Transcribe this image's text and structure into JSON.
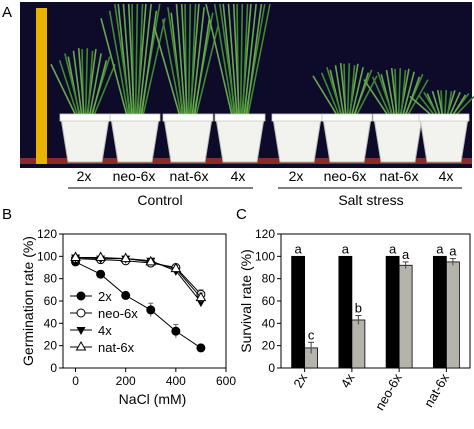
{
  "panel_a": {
    "label": "A",
    "genotypes_control": [
      "2x",
      "neo-6x",
      "nat-6x",
      "4x"
    ],
    "genotypes_salt": [
      "2x",
      "neo-6x",
      "nat-6x",
      "4x"
    ],
    "group_control": "Control",
    "group_salt": "Salt stress",
    "colors": {
      "background": "#0d0a2a",
      "pot": "#f2f2ee",
      "plant": "#3f8a2e",
      "ruler": "#e8b400",
      "bench": "#8a2a2a"
    }
  },
  "chart_data": [
    {
      "panel_label": "B",
      "type": "line",
      "xlabel": "NaCl (mM)",
      "ylabel": "Germination rate (%)",
      "xlim": [
        -50,
        600
      ],
      "ylim": [
        0,
        120
      ],
      "xticks": [
        0,
        200,
        400,
        600
      ],
      "yticks": [
        0,
        20,
        40,
        60,
        80,
        100,
        120
      ],
      "grid": false,
      "legend_position": "bottom-left",
      "series": [
        {
          "name": "2x",
          "marker": "filled-circle",
          "x": [
            0,
            100,
            200,
            300,
            400,
            500
          ],
          "y": [
            95,
            84,
            65,
            52,
            33,
            18
          ],
          "err": [
            3,
            3,
            2,
            6,
            6,
            3
          ]
        },
        {
          "name": "neo-6x",
          "marker": "open-circle",
          "x": [
            0,
            100,
            200,
            300,
            400,
            500
          ],
          "y": [
            98,
            97,
            96,
            94,
            90,
            66
          ],
          "err": [
            2,
            2,
            2,
            2,
            3,
            4
          ]
        },
        {
          "name": "4x",
          "marker": "filled-triangle-down",
          "x": [
            0,
            100,
            200,
            300,
            400,
            500
          ],
          "y": [
            99,
            98,
            98,
            96,
            87,
            59
          ],
          "err": [
            1,
            1,
            1,
            2,
            3,
            3
          ]
        },
        {
          "name": "nat-6x",
          "marker": "open-triangle-up",
          "x": [
            0,
            100,
            200,
            300,
            400,
            500
          ],
          "y": [
            99,
            99,
            98,
            95,
            89,
            63
          ],
          "err": [
            1,
            1,
            1,
            2,
            3,
            4
          ]
        }
      ]
    },
    {
      "panel_label": "C",
      "type": "bar",
      "ylabel": "Survival rate (%)",
      "ylim": [
        0,
        120
      ],
      "yticks": [
        0,
        20,
        40,
        60,
        80,
        100,
        120
      ],
      "categories": [
        "2x",
        "4x",
        "neo-6x",
        "nat-6x"
      ],
      "series": [
        {
          "name": "",
          "color": "#000000",
          "values": [
            100,
            100,
            100,
            100
          ],
          "err": [
            0,
            0,
            0,
            0
          ],
          "letters": [
            "a",
            "a",
            "a",
            "a"
          ]
        },
        {
          "name": "",
          "color": "#b4b4ac",
          "values": [
            18,
            43,
            92,
            95
          ],
          "err": [
            5,
            4,
            3,
            3
          ],
          "letters": [
            "c",
            "b",
            "a",
            "a"
          ]
        }
      ]
    }
  ]
}
